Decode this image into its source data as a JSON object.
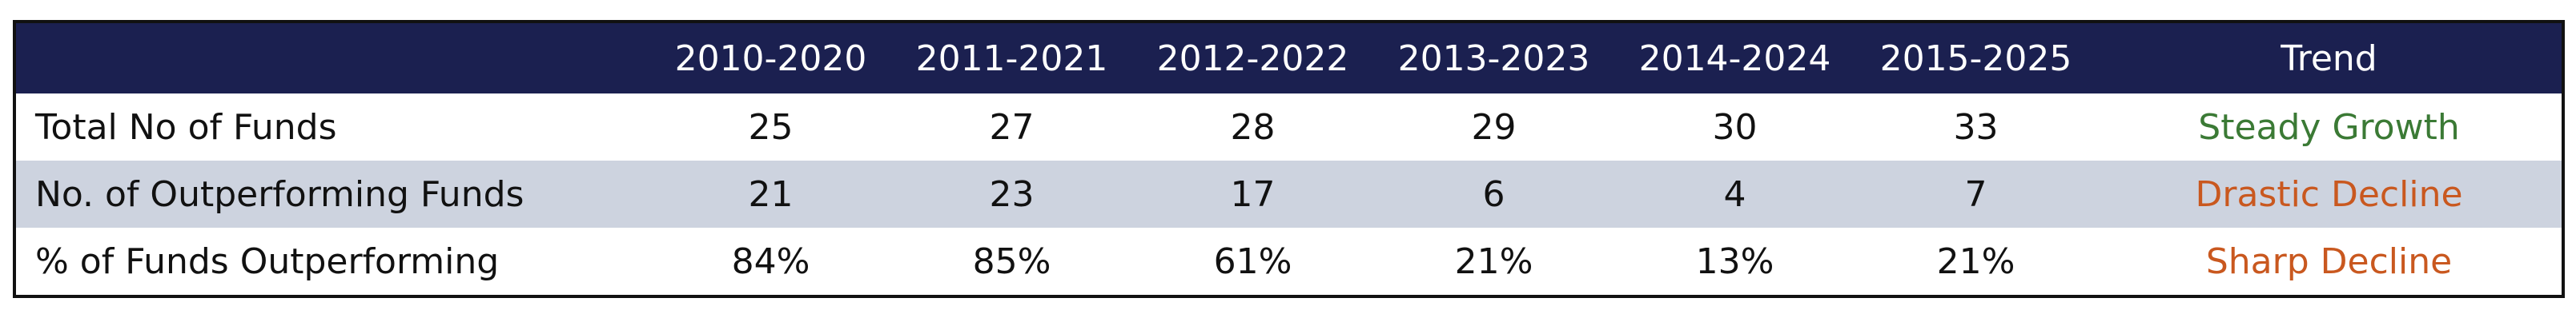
{
  "table": {
    "header": [
      "",
      "2010-2020",
      "2011-2021",
      "2012-2022",
      "2013-2023",
      "2014-2024",
      "2015-2025",
      "Trend"
    ],
    "rows": [
      {
        "label": "Total No of Funds",
        "cells": [
          "25",
          "27",
          "28",
          "29",
          "30",
          "33"
        ],
        "trend": "Steady Growth",
        "trend_color": "#3b7a35",
        "background": "#ffffff"
      },
      {
        "label": "No. of Outperforming Funds",
        "cells": [
          "21",
          "23",
          "17",
          "6",
          "4",
          "7"
        ],
        "trend": "Drastic Decline",
        "trend_color": "#c9581f",
        "background": "#cdd3df"
      },
      {
        "label": "% of Funds Outperforming",
        "cells": [
          "84%",
          "85%",
          "61%",
          "21%",
          "13%",
          "21%"
        ],
        "trend": "Sharp Decline",
        "trend_color": "#c9581f",
        "background": "#ffffff"
      }
    ]
  }
}
